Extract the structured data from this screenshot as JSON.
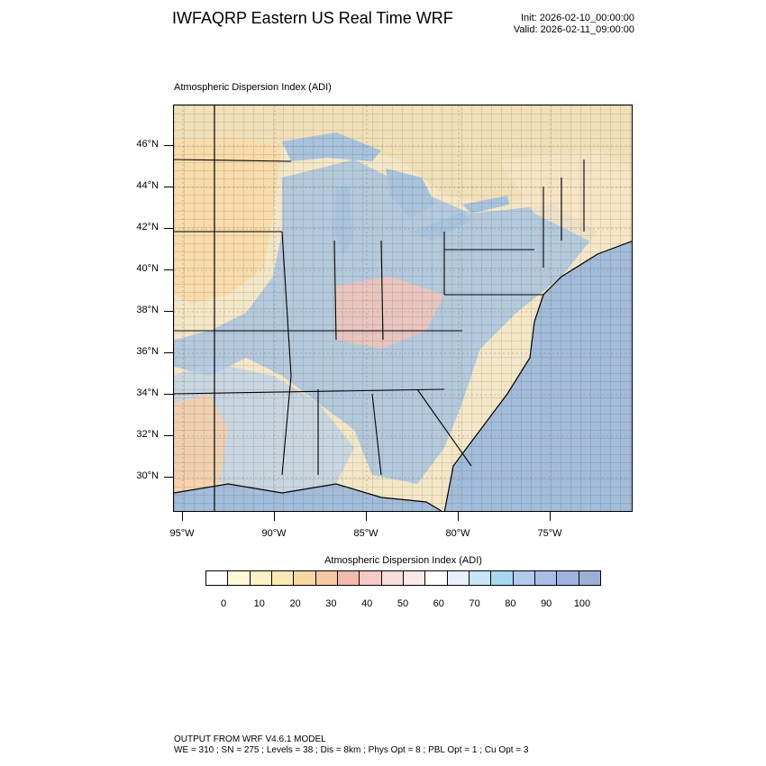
{
  "header": {
    "title": "IWFAQRP Eastern US Real Time WRF",
    "init": "Init: 2026-02-10_00:00:00",
    "valid": "Valid: 2026-02-11_09:00:00"
  },
  "map": {
    "subtitle": "Atmospheric Dispersion Index   (ADI)",
    "lat_labels": [
      "46°N",
      "44°N",
      "42°N",
      "40°N",
      "38°N",
      "36°N",
      "34°N",
      "32°N",
      "30°N"
    ],
    "lon_labels": [
      "95°W",
      "90°W",
      "85°W",
      "80°W",
      "75°W"
    ],
    "colors": {
      "land_base": "#f3e7c8",
      "water": "#a9c3dd",
      "ocean_deep": "#a3bcd9",
      "high_adi": "#9fb7d8",
      "low_adi": "#f8d9a6",
      "terrain": "#e8d7b0"
    }
  },
  "colorbar": {
    "title": "Atmospheric Dispersion Index  (ADI)",
    "labels": [
      "0",
      "10",
      "20",
      "30",
      "40",
      "50",
      "60",
      "70",
      "80",
      "90",
      "100"
    ],
    "colors": [
      "#ffffff",
      "#fff8d8",
      "#fdf0c4",
      "#fbe8b3",
      "#f7d8a2",
      "#f6c8a4",
      "#f4b8ac",
      "#f7c9c6",
      "#f8dcd9",
      "#fbe9e6",
      "#ffffff",
      "#e8f0fb",
      "#c7e6f6",
      "#a7d8f2",
      "#b0cbee",
      "#a8bee8",
      "#9fb2e2",
      "#9cb0d6"
    ]
  },
  "footer": {
    "line1": "OUTPUT FROM WRF V4.6.1 MODEL",
    "line2": "WE = 310 ; SN = 275 ; Levels = 38 ; Dis = 8km ; Phys Opt = 8 ; PBL Opt = 1 ; Cu Opt = 3"
  }
}
